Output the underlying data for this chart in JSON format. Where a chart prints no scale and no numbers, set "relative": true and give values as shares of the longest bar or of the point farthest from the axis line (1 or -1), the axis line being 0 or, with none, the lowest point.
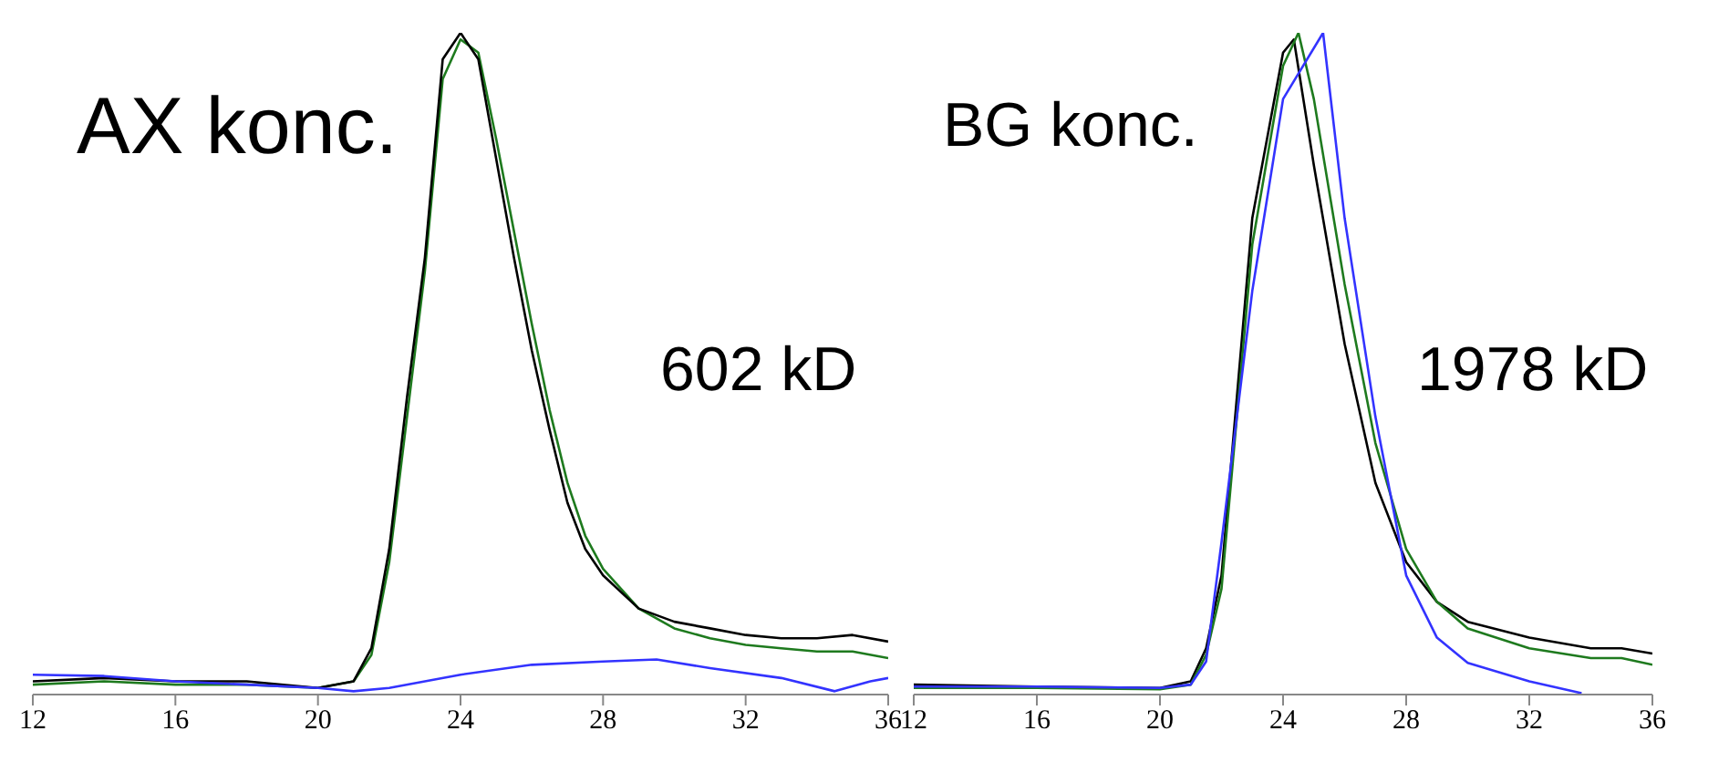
{
  "chart_data": [
    {
      "type": "line",
      "relative": true,
      "xlim": [
        12,
        36
      ],
      "xticks": [
        12,
        16,
        20,
        24,
        28,
        32,
        36
      ],
      "annotations": [
        "AX konc.",
        "602 kD"
      ],
      "series": [
        {
          "color": "#1e7a1e",
          "x": [
            12,
            14,
            16,
            18,
            20,
            21,
            21.5,
            22,
            22.5,
            23,
            23.5,
            24,
            24.5,
            25,
            25.5,
            26,
            26.5,
            27,
            27.5,
            28,
            29,
            30,
            31,
            32,
            33,
            34,
            35,
            36
          ],
          "values": [
            0.015,
            0.02,
            0.015,
            0.015,
            0.01,
            0.02,
            0.06,
            0.2,
            0.42,
            0.64,
            0.93,
            0.99,
            0.97,
            0.84,
            0.7,
            0.56,
            0.43,
            0.32,
            0.24,
            0.19,
            0.13,
            0.1,
            0.085,
            0.075,
            0.07,
            0.065,
            0.065,
            0.055
          ]
        },
        {
          "color": "#000000",
          "x": [
            12,
            14,
            16,
            18,
            20,
            21,
            21.5,
            22,
            22.5,
            23,
            23.5,
            24,
            24.5,
            25,
            25.5,
            26,
            26.5,
            27,
            27.5,
            28,
            29,
            30,
            31,
            32,
            33,
            34,
            35,
            36
          ],
          "values": [
            0.02,
            0.025,
            0.02,
            0.02,
            0.01,
            0.02,
            0.07,
            0.22,
            0.45,
            0.66,
            0.96,
            1.0,
            0.96,
            0.81,
            0.66,
            0.52,
            0.4,
            0.29,
            0.22,
            0.18,
            0.13,
            0.11,
            0.1,
            0.09,
            0.085,
            0.085,
            0.09,
            0.08
          ]
        },
        {
          "color": "#3333ff",
          "x": [
            12,
            14,
            16,
            18,
            20,
            21,
            22,
            24,
            26,
            28,
            29.5,
            31,
            33,
            34.5,
            35.5,
            36
          ],
          "values": [
            0.03,
            0.028,
            0.02,
            0.015,
            0.01,
            0.005,
            0.01,
            0.03,
            0.045,
            0.05,
            0.053,
            0.04,
            0.025,
            0.005,
            0.02,
            0.025
          ]
        }
      ]
    },
    {
      "type": "line",
      "relative": true,
      "xlim": [
        12,
        36
      ],
      "xticks": [
        12,
        16,
        20,
        24,
        28,
        32,
        36
      ],
      "annotations": [
        "BG konc.",
        "1978 kD"
      ],
      "series": [
        {
          "color": "#000000",
          "x": [
            12,
            16,
            20,
            21,
            21.5,
            22,
            23,
            24,
            24.35,
            25,
            26,
            27,
            28,
            29,
            30,
            32,
            34,
            35,
            36
          ],
          "values": [
            0.015,
            0.012,
            0.01,
            0.02,
            0.07,
            0.18,
            0.72,
            0.97,
            0.99,
            0.8,
            0.53,
            0.32,
            0.2,
            0.14,
            0.11,
            0.086,
            0.07,
            0.07,
            0.062
          ]
        },
        {
          "color": "#1e7a1e",
          "x": [
            12,
            16,
            20,
            21,
            21.5,
            22,
            23,
            24,
            24.5,
            25,
            26,
            27,
            28,
            29,
            30,
            32,
            34,
            35,
            36
          ],
          "values": [
            0.01,
            0.01,
            0.008,
            0.015,
            0.06,
            0.16,
            0.68,
            0.95,
            1.0,
            0.9,
            0.62,
            0.38,
            0.22,
            0.14,
            0.1,
            0.07,
            0.055,
            0.055,
            0.045
          ]
        },
        {
          "color": "#3333ff",
          "x": [
            12,
            16,
            20,
            21,
            21.5,
            22,
            23,
            24,
            25.3,
            26,
            27,
            28,
            29,
            30,
            32,
            33.7
          ],
          "values": [
            0.012,
            0.012,
            0.01,
            0.015,
            0.05,
            0.23,
            0.61,
            0.9,
            1.0,
            0.72,
            0.42,
            0.18,
            0.086,
            0.048,
            0.02,
            0.002
          ]
        }
      ]
    }
  ]
}
